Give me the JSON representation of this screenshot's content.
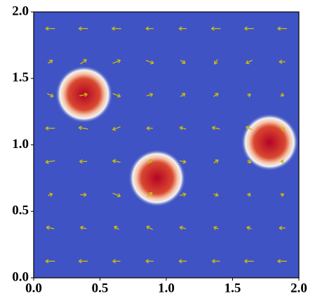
{
  "chart_data": {
    "type": "field",
    "xlim": [
      0,
      2
    ],
    "ylim": [
      0,
      2
    ],
    "xticks": [
      {
        "value": 0,
        "label": "0.0"
      },
      0.5,
      {
        "value": 1,
        "label": "1.0"
      },
      1.5,
      {
        "value": 2,
        "label": "2.0"
      }
    ],
    "yticks": [
      {
        "value": 0,
        "label": "0.0"
      },
      0.5,
      {
        "value": 1,
        "label": "1.0"
      },
      1.5,
      {
        "value": 2,
        "label": "2.0"
      }
    ],
    "background_color": "#3f53c4",
    "blobs": {
      "x": [
        0.38,
        0.93,
        1.78
      ],
      "y": [
        1.38,
        0.75,
        1.02
      ],
      "radius": [
        0.16,
        0.16,
        0.16
      ],
      "color": "#b40426"
    },
    "quiver": {
      "color": "#c9b810",
      "x": [
        0.125,
        0.375,
        0.625,
        0.875,
        1.125,
        1.375,
        1.625,
        1.875
      ],
      "y": [
        0.125,
        0.375,
        0.625,
        0.875,
        1.125,
        1.375,
        1.625,
        1.875
      ],
      "u": [
        [
          -0.6,
          -0.6,
          -0.5,
          -0.5,
          -0.5,
          -0.5,
          -0.6,
          -0.6
        ],
        [
          -0.5,
          -0.4,
          -0.3,
          -0.4,
          -0.4,
          -0.3,
          -0.3,
          -0.4
        ],
        [
          0.3,
          0.4,
          0.5,
          0.3,
          0.4,
          0.3,
          0.1,
          0.2
        ],
        [
          -0.6,
          -0.5,
          -0.5,
          0.2,
          0.4,
          0.3,
          0.2,
          -0.2
        ],
        [
          -0.6,
          -0.6,
          -0.5,
          -0.4,
          -0.4,
          -0.5,
          -0.4,
          0.3
        ],
        [
          0.4,
          0.5,
          0.5,
          0.4,
          0.3,
          0.3,
          0.2,
          0.2
        ],
        [
          0.3,
          0.4,
          0.5,
          0.5,
          0.3,
          -0.2,
          -0.4,
          -0.4
        ],
        [
          -0.6,
          -0.6,
          -0.6,
          -0.5,
          -0.5,
          -0.6,
          -0.6,
          -0.6
        ]
      ],
      "v": [
        [
          0,
          0,
          0,
          0,
          0,
          0,
          0,
          0
        ],
        [
          0.1,
          0.1,
          0.2,
          0.2,
          0.1,
          0.1,
          0.1,
          0
        ],
        [
          0.1,
          0,
          -0.2,
          0.3,
          0.1,
          -0.1,
          0.2,
          0.1
        ],
        [
          -0.1,
          0,
          0.1,
          0.3,
          -0.1,
          0.2,
          -0.2,
          0
        ],
        [
          0,
          0.1,
          -0.2,
          0,
          0.1,
          0.1,
          0.2,
          -0.2
        ],
        [
          -0.2,
          0.1,
          -0.2,
          0.1,
          0.2,
          0.2,
          0.1,
          -0.1
        ],
        [
          0.2,
          0.3,
          0.2,
          -0.2,
          -0.2,
          -0.3,
          -0.2,
          0
        ],
        [
          0,
          0,
          0,
          0,
          0,
          0,
          0,
          0
        ]
      ]
    }
  }
}
